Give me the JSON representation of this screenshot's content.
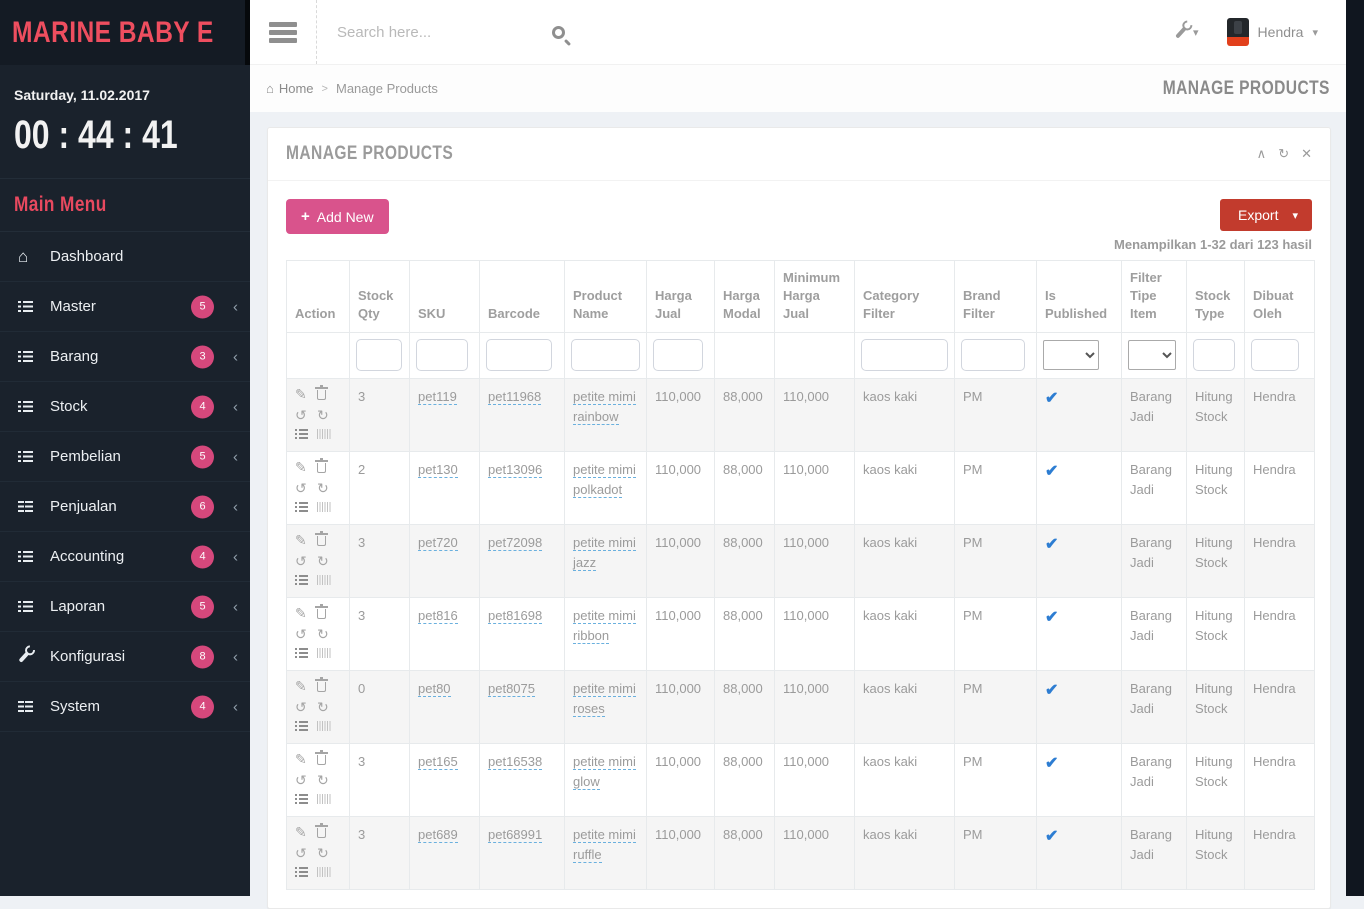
{
  "brand": {
    "logo_text": "MARINE BABY E"
  },
  "topbar": {
    "search_placeholder": "Search here...",
    "user_name": "Hendra"
  },
  "sidebar": {
    "date": "Saturday, 11.02.2017",
    "clock": "00 : 44 : 41",
    "menu_heading": "Main Menu",
    "items": [
      {
        "label": "Dashboard",
        "icon": "home-icon",
        "badge": null
      },
      {
        "label": "Master",
        "icon": "list-icon",
        "badge": "5"
      },
      {
        "label": "Barang",
        "icon": "list-icon",
        "badge": "3"
      },
      {
        "label": "Stock",
        "icon": "list-icon",
        "badge": "4"
      },
      {
        "label": "Pembelian",
        "icon": "list-icon",
        "badge": "5"
      },
      {
        "label": "Penjualan",
        "icon": "th-list-icon",
        "badge": "6"
      },
      {
        "label": "Accounting",
        "icon": "list-icon",
        "badge": "4"
      },
      {
        "label": "Laporan",
        "icon": "list-icon",
        "badge": "5"
      },
      {
        "label": "Konfigurasi",
        "icon": "wrench-icon",
        "badge": "8"
      },
      {
        "label": "System",
        "icon": "th-list-icon",
        "badge": "4"
      }
    ]
  },
  "breadcrumb": {
    "home": "Home",
    "separator": ">",
    "current": "Manage Products",
    "page_title": "MANAGE PRODUCTS"
  },
  "panel": {
    "title": "MANAGE PRODUCTS",
    "add_button": "Add New",
    "export_button": "Export",
    "results_summary": "Menampilkan 1-32 dari 123 hasil"
  },
  "table": {
    "columns": [
      "Action",
      "Stock Qty",
      "SKU",
      "Barcode",
      "Product Name",
      "Harga Jual",
      "Harga Modal",
      "Minimum Harga Jual",
      "Category Filter",
      "Brand Filter",
      "Is Published",
      "Filter Tipe Item",
      "Stock Type",
      "Dibuat Oleh"
    ],
    "rows": [
      {
        "stock_qty": "3",
        "sku": "pet119",
        "barcode": "pet11968",
        "product_name": "petite mimi rainbow",
        "harga_jual": "110,000",
        "harga_modal": "88,000",
        "min_harga_jual": "110,000",
        "category": "kaos kaki",
        "brand": "PM",
        "is_published": true,
        "tipe_item": "Barang Jadi",
        "stock_type": "Hitung Stock",
        "dibuat_oleh": "Hendra"
      },
      {
        "stock_qty": "2",
        "sku": "pet130",
        "barcode": "pet13096",
        "product_name": "petite mimi polkadot",
        "harga_jual": "110,000",
        "harga_modal": "88,000",
        "min_harga_jual": "110,000",
        "category": "kaos kaki",
        "brand": "PM",
        "is_published": true,
        "tipe_item": "Barang Jadi",
        "stock_type": "Hitung Stock",
        "dibuat_oleh": "Hendra"
      },
      {
        "stock_qty": "3",
        "sku": "pet720",
        "barcode": "pet72098",
        "product_name": "petite mimi jazz",
        "harga_jual": "110,000",
        "harga_modal": "88,000",
        "min_harga_jual": "110,000",
        "category": "kaos kaki",
        "brand": "PM",
        "is_published": true,
        "tipe_item": "Barang Jadi",
        "stock_type": "Hitung Stock",
        "dibuat_oleh": "Hendra"
      },
      {
        "stock_qty": "3",
        "sku": "pet816",
        "barcode": "pet81698",
        "product_name": "petite mimi ribbon",
        "harga_jual": "110,000",
        "harga_modal": "88,000",
        "min_harga_jual": "110,000",
        "category": "kaos kaki",
        "brand": "PM",
        "is_published": true,
        "tipe_item": "Barang Jadi",
        "stock_type": "Hitung Stock",
        "dibuat_oleh": "Hendra"
      },
      {
        "stock_qty": "0",
        "sku": "pet80",
        "barcode": "pet8075",
        "product_name": "petite mimi roses",
        "harga_jual": "110,000",
        "harga_modal": "88,000",
        "min_harga_jual": "110,000",
        "category": "kaos kaki",
        "brand": "PM",
        "is_published": true,
        "tipe_item": "Barang Jadi",
        "stock_type": "Hitung Stock",
        "dibuat_oleh": "Hendra"
      },
      {
        "stock_qty": "3",
        "sku": "pet165",
        "barcode": "pet16538",
        "product_name": "petite mimi glow",
        "harga_jual": "110,000",
        "harga_modal": "88,000",
        "min_harga_jual": "110,000",
        "category": "kaos kaki",
        "brand": "PM",
        "is_published": true,
        "tipe_item": "Barang Jadi",
        "stock_type": "Hitung Stock",
        "dibuat_oleh": "Hendra"
      },
      {
        "stock_qty": "3",
        "sku": "pet689",
        "barcode": "pet68991",
        "product_name": "petite mimi ruffle",
        "harga_jual": "110,000",
        "harga_modal": "88,000",
        "min_harga_jual": "110,000",
        "category": "kaos kaki",
        "brand": "PM",
        "is_published": true,
        "tipe_item": "Barang Jadi",
        "stock_type": "Hitung Stock",
        "dibuat_oleh": "Hendra"
      }
    ]
  },
  "colors": {
    "sidebar_bg": "#1a222c",
    "logo_bg": "#141b24",
    "accent_pink": "#d6487c",
    "brand_red": "#ee4e5f",
    "export_red": "#c23b2d",
    "published_blue": "#2d7dd2",
    "qty_red": "#a94442",
    "content_bg": "#eef1f5"
  }
}
